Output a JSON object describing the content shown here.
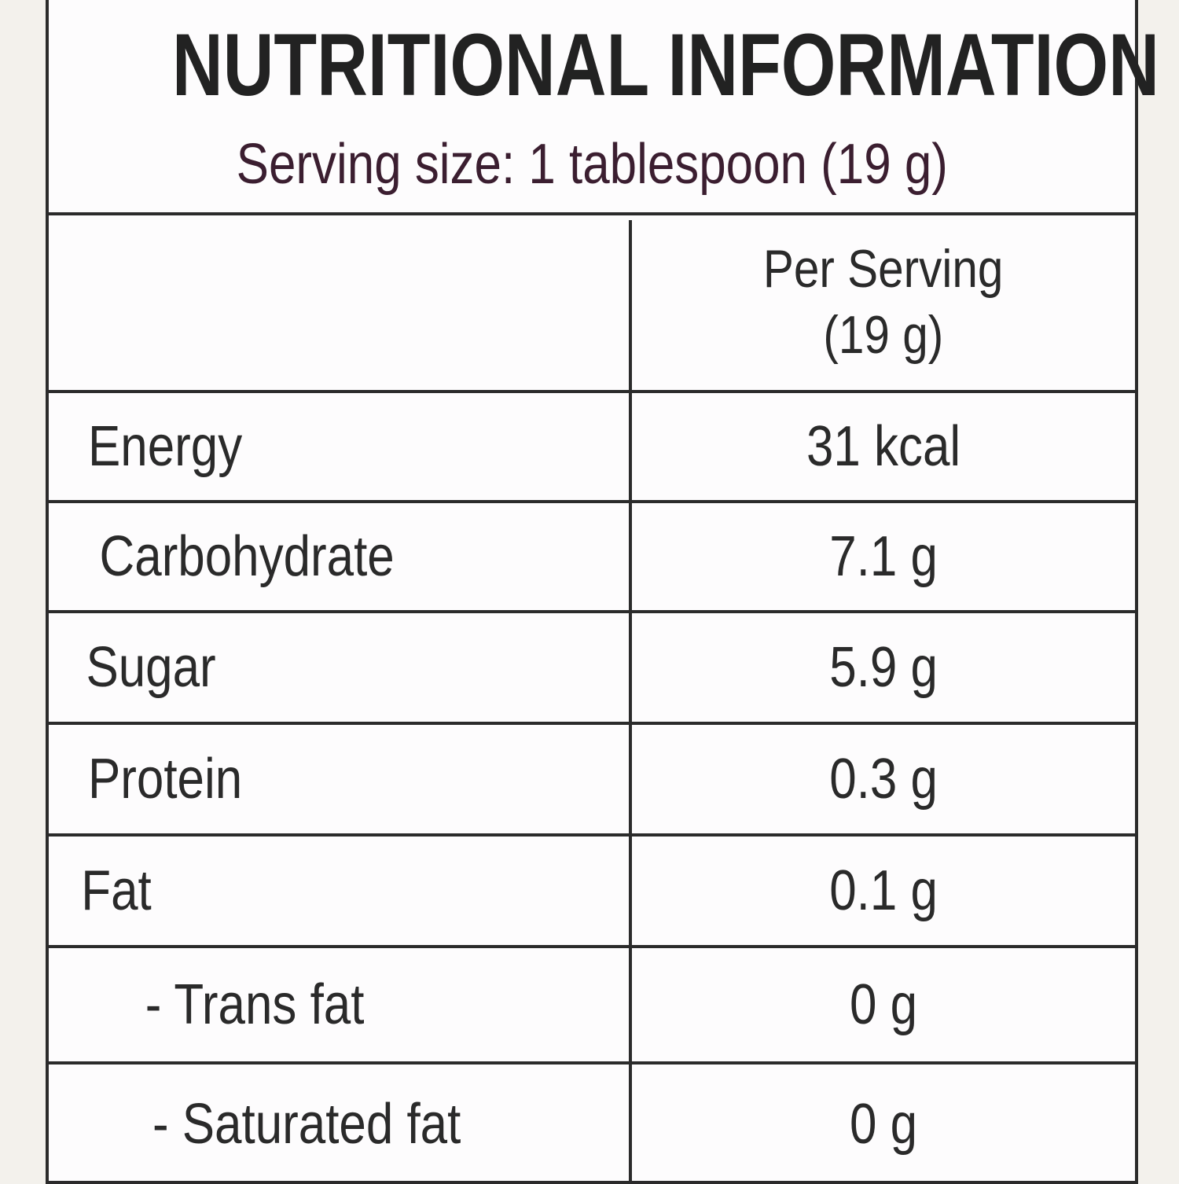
{
  "header": {
    "title": "NUTRITIONAL INFORMATION",
    "serving": "Serving size: 1 tablespoon (19 g)"
  },
  "table": {
    "column_header": [
      "Per Serving",
      "(19 g)"
    ],
    "rows": [
      [
        "Energy",
        "31 kcal"
      ],
      [
        "Carbohydrate",
        "7.1 g"
      ],
      [
        "Sugar",
        "5.9 g"
      ],
      [
        "Protein",
        "0.3 g"
      ],
      [
        "Fat",
        "0.1 g"
      ],
      [
        "- Trans fat",
        "0 g"
      ],
      [
        "- Saturated fat",
        "0 g"
      ]
    ]
  }
}
